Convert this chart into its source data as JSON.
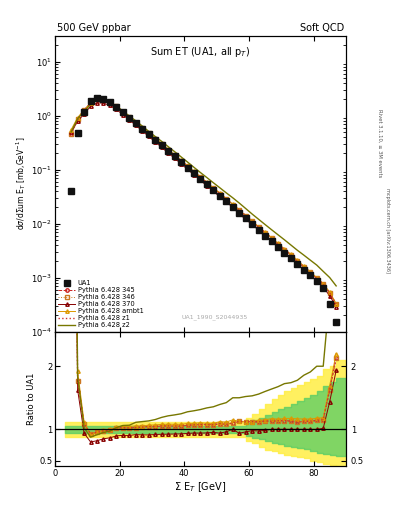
{
  "title_top": "500 GeV ppbar",
  "title_right": "Soft QCD",
  "plot_title": "Sum ET (UA1, all p_{T})",
  "xlabel": "Σ E_{T} [GeV]",
  "ylabel_top": "dσ/dΣum E_{T} [mb,GeV⁻¹]",
  "ylabel_bottom": "Ratio to UA1",
  "watermark": "UA1_1990_S2044935",
  "right_label": "Rivet 3.1.10, ≥ 3M events",
  "right_label2": "mcplots.cern.ch [arXiv:1306.3436]",
  "ua1_x": [
    5,
    7,
    9,
    11,
    13,
    15,
    17,
    19,
    21,
    23,
    25,
    27,
    29,
    31,
    33,
    35,
    37,
    39,
    41,
    43,
    45,
    47,
    49,
    51,
    53,
    55,
    57,
    59,
    61,
    63,
    65,
    67,
    69,
    71,
    73,
    75,
    77,
    79,
    81,
    83,
    85,
    87
  ],
  "ua1_y": [
    0.04,
    0.48,
    1.15,
    1.85,
    2.1,
    2.0,
    1.78,
    1.45,
    1.15,
    0.92,
    0.72,
    0.57,
    0.45,
    0.355,
    0.28,
    0.22,
    0.175,
    0.138,
    0.108,
    0.085,
    0.067,
    0.053,
    0.042,
    0.033,
    0.026,
    0.02,
    0.016,
    0.0125,
    0.0098,
    0.0077,
    0.006,
    0.0047,
    0.0037,
    0.0029,
    0.0023,
    0.0018,
    0.0014,
    0.0011,
    0.00085,
    0.00065,
    0.00032,
    0.00015
  ],
  "pythia_x": [
    5,
    7,
    9,
    11,
    13,
    15,
    17,
    19,
    21,
    23,
    25,
    27,
    29,
    31,
    33,
    35,
    37,
    39,
    41,
    43,
    45,
    47,
    49,
    51,
    53,
    55,
    57,
    59,
    61,
    63,
    65,
    67,
    69,
    71,
    73,
    75,
    77,
    79,
    81,
    83,
    85,
    87
  ],
  "p345_y": [
    0.45,
    0.85,
    1.25,
    1.72,
    2.0,
    1.95,
    1.75,
    1.48,
    1.18,
    0.94,
    0.74,
    0.59,
    0.47,
    0.37,
    0.295,
    0.232,
    0.184,
    0.145,
    0.115,
    0.091,
    0.072,
    0.057,
    0.045,
    0.036,
    0.028,
    0.022,
    0.018,
    0.014,
    0.011,
    0.0086,
    0.0068,
    0.0053,
    0.0042,
    0.0033,
    0.0026,
    0.002,
    0.00158,
    0.00124,
    0.00097,
    0.00075,
    0.00052,
    0.00032
  ],
  "p346_y": [
    0.45,
    0.85,
    1.25,
    1.72,
    2.0,
    1.95,
    1.75,
    1.48,
    1.18,
    0.94,
    0.74,
    0.59,
    0.47,
    0.37,
    0.295,
    0.232,
    0.184,
    0.145,
    0.115,
    0.091,
    0.072,
    0.057,
    0.045,
    0.036,
    0.028,
    0.022,
    0.018,
    0.014,
    0.011,
    0.0086,
    0.0068,
    0.0053,
    0.0042,
    0.0033,
    0.0026,
    0.002,
    0.00158,
    0.00124,
    0.00097,
    0.00075,
    0.00052,
    0.00032
  ],
  "p370_y": [
    0.5,
    0.78,
    1.08,
    1.48,
    1.72,
    1.7,
    1.54,
    1.3,
    1.04,
    0.83,
    0.66,
    0.52,
    0.41,
    0.326,
    0.258,
    0.203,
    0.162,
    0.128,
    0.101,
    0.08,
    0.063,
    0.05,
    0.04,
    0.031,
    0.025,
    0.02,
    0.015,
    0.012,
    0.0096,
    0.0075,
    0.0059,
    0.0047,
    0.0037,
    0.0029,
    0.0023,
    0.0018,
    0.0014,
    0.0011,
    0.00085,
    0.00066,
    0.00046,
    0.00029
  ],
  "pambt1_y": [
    0.55,
    0.92,
    1.28,
    1.7,
    2.0,
    1.97,
    1.78,
    1.5,
    1.2,
    0.96,
    0.76,
    0.6,
    0.48,
    0.38,
    0.302,
    0.238,
    0.189,
    0.149,
    0.118,
    0.093,
    0.074,
    0.058,
    0.046,
    0.037,
    0.029,
    0.023,
    0.018,
    0.014,
    0.011,
    0.0088,
    0.0069,
    0.0055,
    0.0043,
    0.0034,
    0.0027,
    0.0021,
    0.00163,
    0.00128,
    0.001,
    0.00077,
    0.00054,
    0.00033
  ],
  "pz1_y": [
    0.45,
    0.85,
    1.25,
    1.72,
    2.0,
    1.95,
    1.75,
    1.48,
    1.18,
    0.94,
    0.74,
    0.59,
    0.47,
    0.37,
    0.295,
    0.232,
    0.184,
    0.145,
    0.115,
    0.091,
    0.072,
    0.057,
    0.045,
    0.036,
    0.028,
    0.022,
    0.018,
    0.014,
    0.011,
    0.0086,
    0.0068,
    0.0053,
    0.0042,
    0.0033,
    0.0026,
    0.002,
    0.00158,
    0.00124,
    0.00097,
    0.00075,
    0.00052,
    0.00032
  ],
  "pz2_y": [
    0.5,
    0.88,
    1.18,
    1.62,
    1.92,
    1.9,
    1.73,
    1.49,
    1.22,
    0.98,
    0.8,
    0.64,
    0.51,
    0.41,
    0.333,
    0.267,
    0.215,
    0.172,
    0.138,
    0.11,
    0.088,
    0.071,
    0.057,
    0.046,
    0.037,
    0.03,
    0.024,
    0.019,
    0.015,
    0.012,
    0.0096,
    0.0077,
    0.0062,
    0.005,
    0.004,
    0.0032,
    0.0026,
    0.0021,
    0.0017,
    0.0013,
    0.001,
    0.0007
  ],
  "colors": {
    "ua1": "#111111",
    "p345": "#cc2222",
    "p346": "#cc7722",
    "p370": "#880000",
    "pambt1": "#dd9900",
    "pz1": "#cc3333",
    "pz2": "#777700"
  },
  "band_x": [
    3,
    5,
    7,
    9,
    11,
    13,
    15,
    17,
    19,
    21,
    23,
    25,
    27,
    29,
    31,
    33,
    35,
    37,
    39,
    41,
    43,
    45,
    47,
    49,
    51,
    53,
    55,
    57,
    59,
    61,
    63,
    65,
    67,
    69,
    71,
    73,
    75,
    77,
    79,
    81,
    83,
    85,
    87,
    90
  ],
  "band_yellow_lo": [
    0.88,
    0.88,
    0.88,
    0.88,
    0.88,
    0.88,
    0.88,
    0.88,
    0.88,
    0.88,
    0.88,
    0.88,
    0.88,
    0.88,
    0.88,
    0.88,
    0.88,
    0.88,
    0.88,
    0.88,
    0.88,
    0.88,
    0.88,
    0.88,
    0.88,
    0.88,
    0.88,
    0.88,
    0.82,
    0.78,
    0.72,
    0.68,
    0.65,
    0.62,
    0.6,
    0.58,
    0.56,
    0.55,
    0.5,
    0.48,
    0.45,
    0.43,
    0.4,
    0.4
  ],
  "band_yellow_hi": [
    1.12,
    1.12,
    1.12,
    1.12,
    1.12,
    1.12,
    1.12,
    1.12,
    1.12,
    1.12,
    1.12,
    1.12,
    1.12,
    1.12,
    1.12,
    1.12,
    1.12,
    1.12,
    1.12,
    1.12,
    1.12,
    1.12,
    1.12,
    1.12,
    1.12,
    1.12,
    1.12,
    1.12,
    1.18,
    1.25,
    1.32,
    1.4,
    1.48,
    1.55,
    1.6,
    1.65,
    1.7,
    1.75,
    1.8,
    1.85,
    1.95,
    2.0,
    2.1,
    2.1
  ],
  "band_green_lo": [
    0.94,
    0.94,
    0.94,
    0.94,
    0.94,
    0.94,
    0.94,
    0.94,
    0.94,
    0.94,
    0.94,
    0.94,
    0.94,
    0.94,
    0.94,
    0.94,
    0.94,
    0.94,
    0.94,
    0.94,
    0.94,
    0.94,
    0.94,
    0.94,
    0.94,
    0.94,
    0.94,
    0.94,
    0.9,
    0.87,
    0.84,
    0.81,
    0.78,
    0.76,
    0.74,
    0.72,
    0.7,
    0.69,
    0.65,
    0.63,
    0.61,
    0.59,
    0.57,
    0.57
  ],
  "band_green_hi": [
    1.06,
    1.06,
    1.06,
    1.06,
    1.06,
    1.06,
    1.06,
    1.06,
    1.06,
    1.06,
    1.06,
    1.06,
    1.06,
    1.06,
    1.06,
    1.06,
    1.06,
    1.06,
    1.06,
    1.06,
    1.06,
    1.06,
    1.06,
    1.06,
    1.06,
    1.06,
    1.06,
    1.06,
    1.1,
    1.14,
    1.18,
    1.22,
    1.28,
    1.32,
    1.36,
    1.4,
    1.45,
    1.5,
    1.55,
    1.6,
    1.68,
    1.75,
    1.82,
    1.82
  ]
}
